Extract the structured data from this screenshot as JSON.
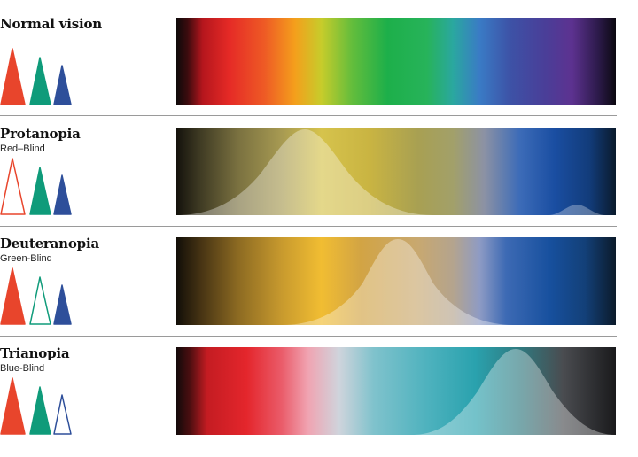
{
  "panels": [
    {
      "title": "Normal vision",
      "subtitle": "",
      "cones": [
        {
          "name": "red-cone",
          "state": "functional",
          "color": "#e8452c"
        },
        {
          "name": "green-cone",
          "state": "functional",
          "color": "#0f9b7a"
        },
        {
          "name": "blue-cone",
          "state": "functional",
          "color": "#2e4f9a"
        }
      ],
      "spectrum": "normal"
    },
    {
      "title": "Protanopia",
      "subtitle": "Red–Blind",
      "cones": [
        {
          "name": "red-cone",
          "state": "missing",
          "color": "#e8452c"
        },
        {
          "name": "green-cone",
          "state": "functional",
          "color": "#0f9b7a"
        },
        {
          "name": "blue-cone",
          "state": "functional",
          "color": "#2e4f9a"
        }
      ],
      "spectrum": "protanopia"
    },
    {
      "title": "Deuteranopia",
      "subtitle": "Green-Blind",
      "cones": [
        {
          "name": "red-cone",
          "state": "functional",
          "color": "#e8452c"
        },
        {
          "name": "green-cone",
          "state": "missing",
          "color": "#0f9b7a"
        },
        {
          "name": "blue-cone",
          "state": "functional",
          "color": "#2e4f9a"
        }
      ],
      "spectrum": "deuteranopia"
    },
    {
      "title": "Trianopia",
      "subtitle": "Blue-Blind",
      "cones": [
        {
          "name": "red-cone",
          "state": "functional",
          "color": "#e8452c"
        },
        {
          "name": "green-cone",
          "state": "functional",
          "color": "#0f9b7a"
        },
        {
          "name": "blue-cone",
          "state": "missing",
          "color": "#2e4f9a"
        }
      ],
      "spectrum": "trianopia"
    }
  ]
}
